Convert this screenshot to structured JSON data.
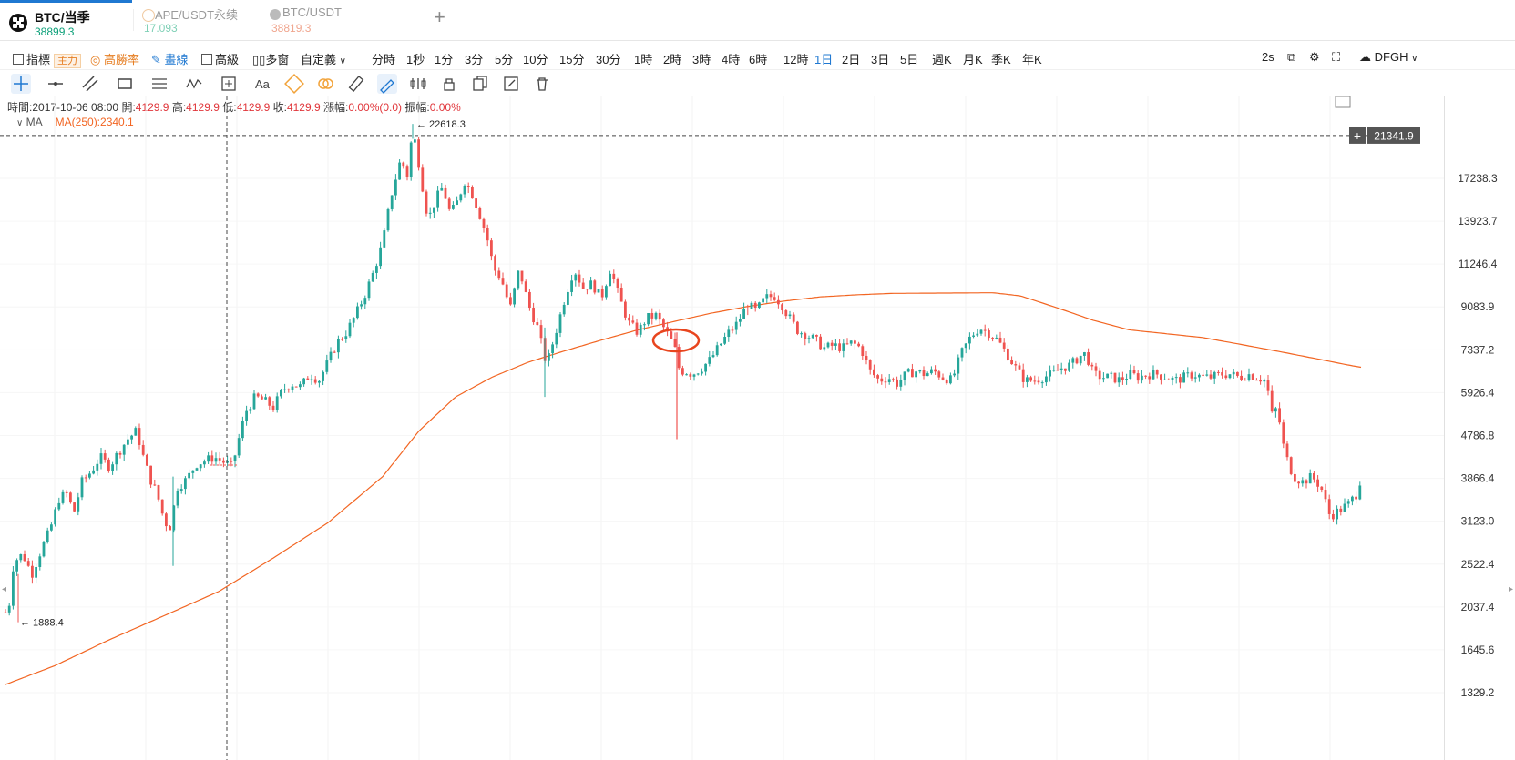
{
  "tabs": [
    {
      "name": "BTC/当季",
      "price": "38899.3",
      "price_color": "#0ea17a",
      "active": true
    },
    {
      "name": "APE/USDT永续",
      "price": "17.093",
      "price_color": "#7fd0b6",
      "active": false
    },
    {
      "name": "BTC/USDT",
      "price": "38819.3",
      "price_color": "#f0a68f",
      "active": false
    }
  ],
  "add_tab": "+",
  "toolbar": {
    "indicators": "指標",
    "main_badge": "主力",
    "win_rate": "高勝率",
    "drawing": "畫線",
    "advanced": "高級",
    "multi_window": "多窗",
    "custom": "自定義",
    "intervals": [
      "分時",
      "1秒",
      "1分",
      "3分",
      "5分",
      "10分",
      "15分",
      "30分",
      "1時",
      "2時",
      "3時",
      "4時",
      "6時",
      "12時",
      "1日",
      "2日",
      "3日",
      "5日",
      "週K",
      "月K",
      "季K",
      "年K"
    ],
    "active_interval": "1日",
    "refresh": "2s",
    "theme": "DFGH"
  },
  "info": {
    "time_label": "時間:",
    "time": "2017-10-06 08:00",
    "open_label": "開:",
    "open": "4129.9",
    "high_label": "高:",
    "high": "4129.9",
    "low_label": "低:",
    "low": "4129.9",
    "close_label": "收:",
    "close": "4129.9",
    "change_label": "漲幅:",
    "change": "0.00%(0.0)",
    "amp_label": "振幅:",
    "amp": "0.00%"
  },
  "ma": {
    "label": "MA",
    "value": "MA(250):2340.1"
  },
  "colors": {
    "up": "#26a69a",
    "down": "#ef5350",
    "ma": "#f26522",
    "accent": "#1f78d1"
  },
  "chart_data": {
    "type": "candlestick",
    "scale": "log",
    "y_ticks": [
      17238.3,
      13923.7,
      11246.4,
      9083.9,
      7337.2,
      5926.4,
      4786.8,
      3866.4,
      3123.0,
      2522.4,
      2037.4,
      1645.6,
      1329.2
    ],
    "crosshair_price": "21341.9",
    "max_label": "22618.3",
    "min_label": "1888.4",
    "anchors": [
      [
        0,
        2300
      ],
      [
        8,
        1888
      ],
      [
        15,
        2550
      ],
      [
        25,
        2650
      ],
      [
        35,
        2400
      ],
      [
        45,
        2700
      ],
      [
        55,
        3000
      ],
      [
        65,
        3500
      ],
      [
        75,
        3600
      ],
      [
        80,
        3200
      ],
      [
        90,
        3800
      ],
      [
        100,
        4000
      ],
      [
        110,
        4300
      ],
      [
        120,
        4100
      ],
      [
        130,
        4400
      ],
      [
        140,
        4700
      ],
      [
        150,
        4900
      ],
      [
        158,
        4250
      ],
      [
        165,
        3850
      ],
      [
        172,
        3600
      ],
      [
        180,
        3150
      ],
      [
        186,
        3000
      ],
      [
        195,
        3700
      ],
      [
        205,
        3850
      ],
      [
        215,
        4150
      ],
      [
        225,
        4220
      ],
      [
        235,
        4300
      ],
      [
        245,
        4200
      ],
      [
        255,
        4100
      ],
      [
        262,
        4700
      ],
      [
        270,
        5400
      ],
      [
        280,
        5800
      ],
      [
        290,
        5700
      ],
      [
        300,
        5500
      ],
      [
        310,
        6000
      ],
      [
        320,
        6200
      ],
      [
        330,
        6100
      ],
      [
        340,
        6500
      ],
      [
        350,
        6300
      ],
      [
        360,
        6900
      ],
      [
        370,
        7600
      ],
      [
        380,
        8000
      ],
      [
        390,
        8700
      ],
      [
        400,
        9600
      ],
      [
        410,
        10800
      ],
      [
        420,
        12500
      ],
      [
        430,
        16000
      ],
      [
        440,
        19000
      ],
      [
        447,
        17500
      ],
      [
        453,
        22000
      ],
      [
        458,
        19500
      ],
      [
        465,
        16000
      ],
      [
        470,
        14000
      ],
      [
        478,
        15500
      ],
      [
        486,
        16500
      ],
      [
        494,
        14500
      ],
      [
        500,
        15000
      ],
      [
        510,
        17000
      ],
      [
        518,
        16000
      ],
      [
        526,
        14500
      ],
      [
        534,
        13000
      ],
      [
        542,
        11000
      ],
      [
        550,
        10500
      ],
      [
        560,
        9000
      ],
      [
        570,
        11000
      ],
      [
        580,
        9200
      ],
      [
        590,
        8200
      ],
      [
        600,
        6800
      ],
      [
        610,
        8000
      ],
      [
        620,
        9500
      ],
      [
        630,
        11000
      ],
      [
        640,
        10000
      ],
      [
        650,
        10200
      ],
      [
        660,
        9500
      ],
      [
        670,
        11000
      ],
      [
        680,
        9500
      ],
      [
        690,
        8400
      ],
      [
        700,
        8000
      ],
      [
        710,
        8600
      ],
      [
        720,
        8700
      ],
      [
        730,
        8100
      ],
      [
        740,
        7500
      ],
      [
        746,
        6600
      ],
      [
        752,
        6600
      ],
      [
        760,
        6500
      ],
      [
        770,
        6700
      ],
      [
        780,
        7000
      ],
      [
        790,
        7500
      ],
      [
        800,
        8000
      ],
      [
        810,
        8400
      ],
      [
        820,
        9200
      ],
      [
        830,
        8900
      ],
      [
        840,
        9500
      ],
      [
        850,
        9600
      ],
      [
        858,
        9200
      ],
      [
        865,
        8700
      ],
      [
        875,
        8100
      ],
      [
        885,
        7900
      ],
      [
        895,
        7700
      ],
      [
        905,
        7400
      ],
      [
        915,
        7500
      ],
      [
        925,
        7400
      ],
      [
        935,
        7600
      ],
      [
        945,
        7400
      ],
      [
        955,
        6600
      ],
      [
        965,
        6300
      ],
      [
        975,
        6400
      ],
      [
        985,
        6200
      ],
      [
        995,
        6500
      ],
      [
        1005,
        6600
      ],
      [
        1015,
        6500
      ],
      [
        1025,
        6600
      ],
      [
        1035,
        6400
      ],
      [
        1045,
        6300
      ],
      [
        1055,
        7200
      ],
      [
        1065,
        7800
      ],
      [
        1075,
        8200
      ],
      [
        1085,
        8000
      ],
      [
        1095,
        7700
      ],
      [
        1105,
        7200
      ],
      [
        1115,
        6700
      ],
      [
        1125,
        6300
      ],
      [
        1135,
        6300
      ],
      [
        1145,
        6400
      ],
      [
        1155,
        6500
      ],
      [
        1165,
        6700
      ],
      [
        1175,
        6800
      ],
      [
        1185,
        7100
      ],
      [
        1192,
        7200
      ],
      [
        1200,
        6500
      ],
      [
        1210,
        6400
      ],
      [
        1220,
        6400
      ],
      [
        1230,
        6300
      ],
      [
        1240,
        6500
      ],
      [
        1250,
        6400
      ],
      [
        1260,
        6500
      ],
      [
        1270,
        6500
      ],
      [
        1280,
        6400
      ],
      [
        1290,
        6300
      ],
      [
        1300,
        6400
      ],
      [
        1310,
        6500
      ],
      [
        1320,
        6400
      ],
      [
        1330,
        6400
      ],
      [
        1340,
        6500
      ],
      [
        1350,
        6500
      ],
      [
        1360,
        6400
      ],
      [
        1370,
        6500
      ],
      [
        1380,
        6400
      ],
      [
        1390,
        6300
      ],
      [
        1396,
        5300
      ],
      [
        1402,
        5500
      ],
      [
        1410,
        4400
      ],
      [
        1420,
        3900
      ],
      [
        1430,
        3800
      ],
      [
        1440,
        3900
      ],
      [
        1450,
        3700
      ],
      [
        1460,
        3200
      ],
      [
        1470,
        3300
      ],
      [
        1480,
        3400
      ],
      [
        1490,
        3600
      ],
      [
        1495,
        4000
      ]
    ],
    "ma_anchors": [
      [
        0,
        1370
      ],
      [
        60,
        1520
      ],
      [
        120,
        1730
      ],
      [
        180,
        1950
      ],
      [
        240,
        2200
      ],
      [
        300,
        2600
      ],
      [
        360,
        3100
      ],
      [
        420,
        3900
      ],
      [
        460,
        4900
      ],
      [
        500,
        5800
      ],
      [
        540,
        6400
      ],
      [
        580,
        6900
      ],
      [
        620,
        7300
      ],
      [
        660,
        7700
      ],
      [
        700,
        8100
      ],
      [
        740,
        8450
      ],
      [
        780,
        8800
      ],
      [
        820,
        9100
      ],
      [
        860,
        9350
      ],
      [
        900,
        9550
      ],
      [
        940,
        9650
      ],
      [
        980,
        9720
      ],
      [
        1020,
        9730
      ],
      [
        1060,
        9740
      ],
      [
        1090,
        9750
      ],
      [
        1120,
        9600
      ],
      [
        1160,
        9050
      ],
      [
        1200,
        8500
      ],
      [
        1240,
        8100
      ],
      [
        1280,
        7950
      ],
      [
        1320,
        7800
      ],
      [
        1360,
        7550
      ],
      [
        1400,
        7300
      ],
      [
        1440,
        7050
      ],
      [
        1480,
        6800
      ],
      [
        1495,
        6720
      ]
    ]
  }
}
